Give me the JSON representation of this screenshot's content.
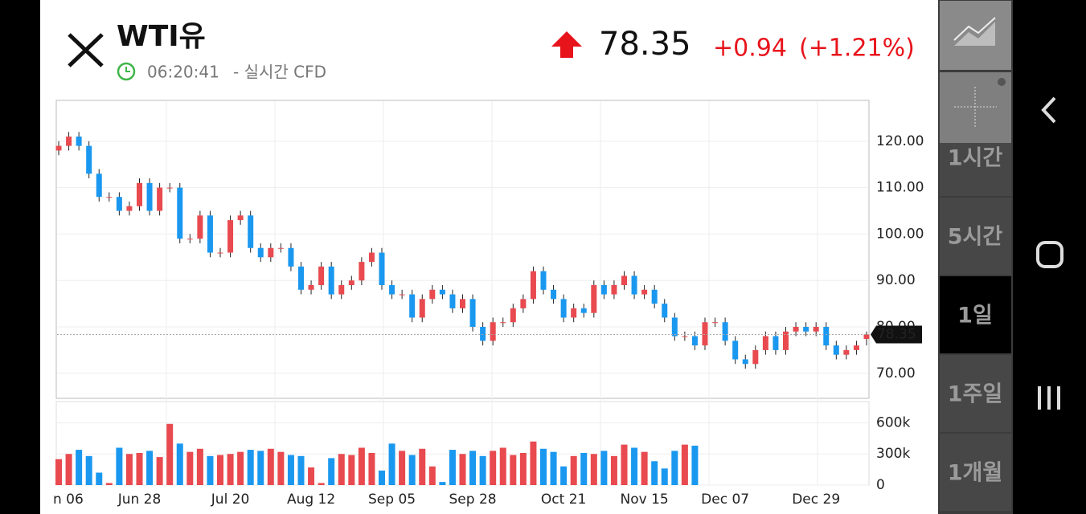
{
  "header": {
    "title": "WTI유",
    "time": "06:20:41",
    "subtitle": "- 실시간 CFD",
    "price": "78.35",
    "change": "+0.94",
    "change_pct": "(+1.21%)"
  },
  "sidebar": {
    "buttons": [
      "1시간",
      "5시간",
      "1일",
      "1주일",
      "1개월"
    ],
    "selected": 2
  },
  "chart_data": [
    {
      "type": "candlestick",
      "categories": [
        null,
        "n 06",
        null,
        null,
        null,
        null,
        null,
        null,
        "Jun 28",
        null,
        null,
        null,
        null,
        null,
        null,
        null,
        null,
        "Jul 20",
        null,
        null,
        null,
        null,
        null,
        null,
        null,
        "Aug 12",
        null,
        null,
        null,
        null,
        null,
        null,
        null,
        "Sep 05",
        null,
        null,
        null,
        null,
        null,
        null,
        null,
        "Sep 28",
        null,
        null,
        null,
        null,
        null,
        null,
        null,
        null,
        "Oct 21",
        null,
        null,
        null,
        null,
        null,
        null,
        null,
        "Nov 15",
        null,
        null,
        null,
        null,
        null,
        null,
        null,
        "Dec 07",
        null,
        null,
        null,
        null,
        null,
        null,
        null,
        null,
        "Dec 29",
        null,
        null,
        null,
        null,
        null
      ],
      "open": [
        118,
        119,
        121,
        119,
        113,
        108,
        108,
        105,
        106,
        111,
        105,
        110,
        110,
        99,
        99,
        104,
        96,
        96,
        103,
        104,
        97,
        95,
        97,
        97,
        93,
        88,
        89,
        93,
        87,
        89,
        90,
        94,
        96,
        89,
        87,
        87,
        82,
        86,
        88,
        87,
        84,
        86,
        80,
        77,
        81,
        81,
        84,
        86,
        92,
        88,
        86,
        82,
        84,
        83,
        89,
        87,
        89,
        91,
        87,
        88,
        85,
        82,
        78,
        78,
        76,
        81,
        81,
        77,
        73,
        72,
        75,
        78,
        75,
        79,
        80,
        79,
        80,
        76,
        74,
        75,
        77.41
      ],
      "high": [
        120,
        122,
        122,
        120,
        114,
        109,
        109,
        107,
        112,
        112,
        111,
        111,
        111,
        100,
        105,
        105,
        97,
        104,
        105,
        105,
        98,
        98,
        98,
        98,
        94,
        90,
        94,
        94,
        90,
        91,
        95,
        97,
        97,
        90,
        88,
        88,
        87,
        89,
        89,
        88,
        87,
        87,
        81,
        82,
        82,
        85,
        87,
        93,
        93,
        89,
        87,
        85,
        85,
        90,
        90,
        90,
        92,
        92,
        89,
        89,
        86,
        83,
        79,
        79,
        82,
        82,
        82,
        78,
        74,
        76,
        79,
        79,
        80,
        81,
        81,
        81,
        81,
        77,
        76,
        77,
        79
      ],
      "low": [
        117,
        118,
        118,
        112,
        107,
        107,
        104,
        104,
        105,
        104,
        104,
        109,
        98,
        98,
        98,
        95,
        95,
        95,
        102,
        96,
        94,
        94,
        96,
        92,
        87,
        87,
        88,
        86,
        86,
        88,
        89,
        93,
        88,
        86,
        86,
        81,
        81,
        85,
        86,
        83,
        83,
        79,
        76,
        76,
        80,
        80,
        83,
        85,
        87,
        85,
        81,
        81,
        82,
        82,
        86,
        86,
        88,
        86,
        86,
        84,
        81,
        77,
        77,
        75,
        75,
        80,
        76,
        72,
        71,
        71,
        74,
        74,
        74,
        78,
        78,
        78,
        75,
        73,
        73,
        74,
        76
      ],
      "close": [
        119,
        121,
        119,
        113,
        108,
        108,
        105,
        106,
        111,
        105,
        110,
        110,
        99,
        99,
        104,
        96,
        96,
        103,
        104,
        97,
        95,
        97,
        97,
        93,
        88,
        89,
        93,
        87,
        89,
        90,
        94,
        96,
        89,
        87,
        87,
        82,
        86,
        88,
        87,
        84,
        86,
        80,
        77,
        81,
        81,
        84,
        86,
        92,
        88,
        86,
        82,
        84,
        83,
        89,
        87,
        89,
        91,
        87,
        88,
        85,
        82,
        78,
        78,
        76,
        81,
        81,
        77,
        73,
        72,
        75,
        78,
        75,
        79,
        80,
        79,
        80,
        76,
        74,
        75,
        76,
        78.35
      ],
      "up_color": "#e84a4f",
      "down_color": "#1a98f0",
      "ylim": [
        64.6,
        128.8
      ],
      "yticks": [
        {
          "value": 70,
          "label": "70.00"
        },
        {
          "value": 80,
          "label": "80.00"
        },
        {
          "value": 90,
          "label": "90.00"
        },
        {
          "value": 100,
          "label": "100.00"
        },
        {
          "value": 110,
          "label": "110.00"
        },
        {
          "value": 120,
          "label": "120.00"
        }
      ],
      "grid": true
    },
    {
      "type": "bar",
      "values": [
        250000,
        300000,
        340000,
        280000,
        120000,
        20000,
        360000,
        300000,
        310000,
        330000,
        270000,
        590000,
        400000,
        320000,
        350000,
        280000,
        290000,
        300000,
        320000,
        340000,
        330000,
        350000,
        320000,
        290000,
        280000,
        170000,
        20000,
        260000,
        300000,
        290000,
        360000,
        310000,
        140000,
        400000,
        330000,
        290000,
        350000,
        180000,
        30000,
        340000,
        300000,
        330000,
        280000,
        330000,
        360000,
        290000,
        310000,
        420000,
        350000,
        320000,
        180000,
        280000,
        310000,
        300000,
        330000,
        280000,
        390000,
        360000,
        320000,
        230000,
        160000,
        330000,
        390000,
        380000,
        null,
        null,
        null,
        null,
        null,
        null,
        null,
        null,
        null,
        null,
        null,
        null,
        null,
        null,
        null,
        null,
        null
      ],
      "ylim": [
        0,
        805000
      ],
      "yticks": [
        0,
        {
          "value": 300000,
          "label": "300k"
        },
        {
          "value": 600000,
          "label": "600k"
        }
      ],
      "grid": true
    }
  ]
}
